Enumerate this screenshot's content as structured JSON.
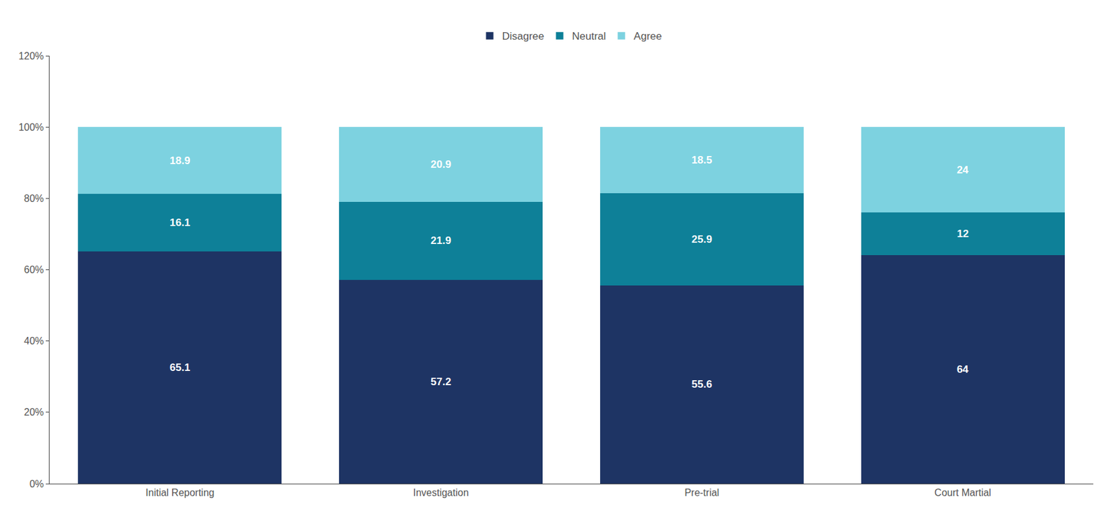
{
  "chart_data": {
    "type": "bar",
    "stacked": true,
    "categories": [
      "Initial Reporting",
      "Investigation",
      "Pre-trial",
      "Court Martial"
    ],
    "series": [
      {
        "name": "Disagree",
        "color": "#1e3464",
        "values": [
          65.1,
          57.2,
          55.6,
          64
        ]
      },
      {
        "name": "Neutral",
        "color": "#0e8098",
        "values": [
          16.1,
          21.9,
          25.9,
          12
        ]
      },
      {
        "name": "Agree",
        "color": "#7dd2e0",
        "values": [
          18.9,
          20.9,
          18.5,
          24
        ]
      }
    ],
    "ylim": [
      0,
      120
    ],
    "yticks": [
      {
        "value": 0,
        "label": "0%"
      },
      {
        "value": 20,
        "label": "20%"
      },
      {
        "value": 40,
        "label": "40%"
      },
      {
        "value": 60,
        "label": "60%"
      },
      {
        "value": 80,
        "label": "80%"
      },
      {
        "value": 100,
        "label": "100%"
      },
      {
        "value": 120,
        "label": "120%"
      }
    ],
    "data_labels": true,
    "grid": false,
    "legend": "top"
  }
}
